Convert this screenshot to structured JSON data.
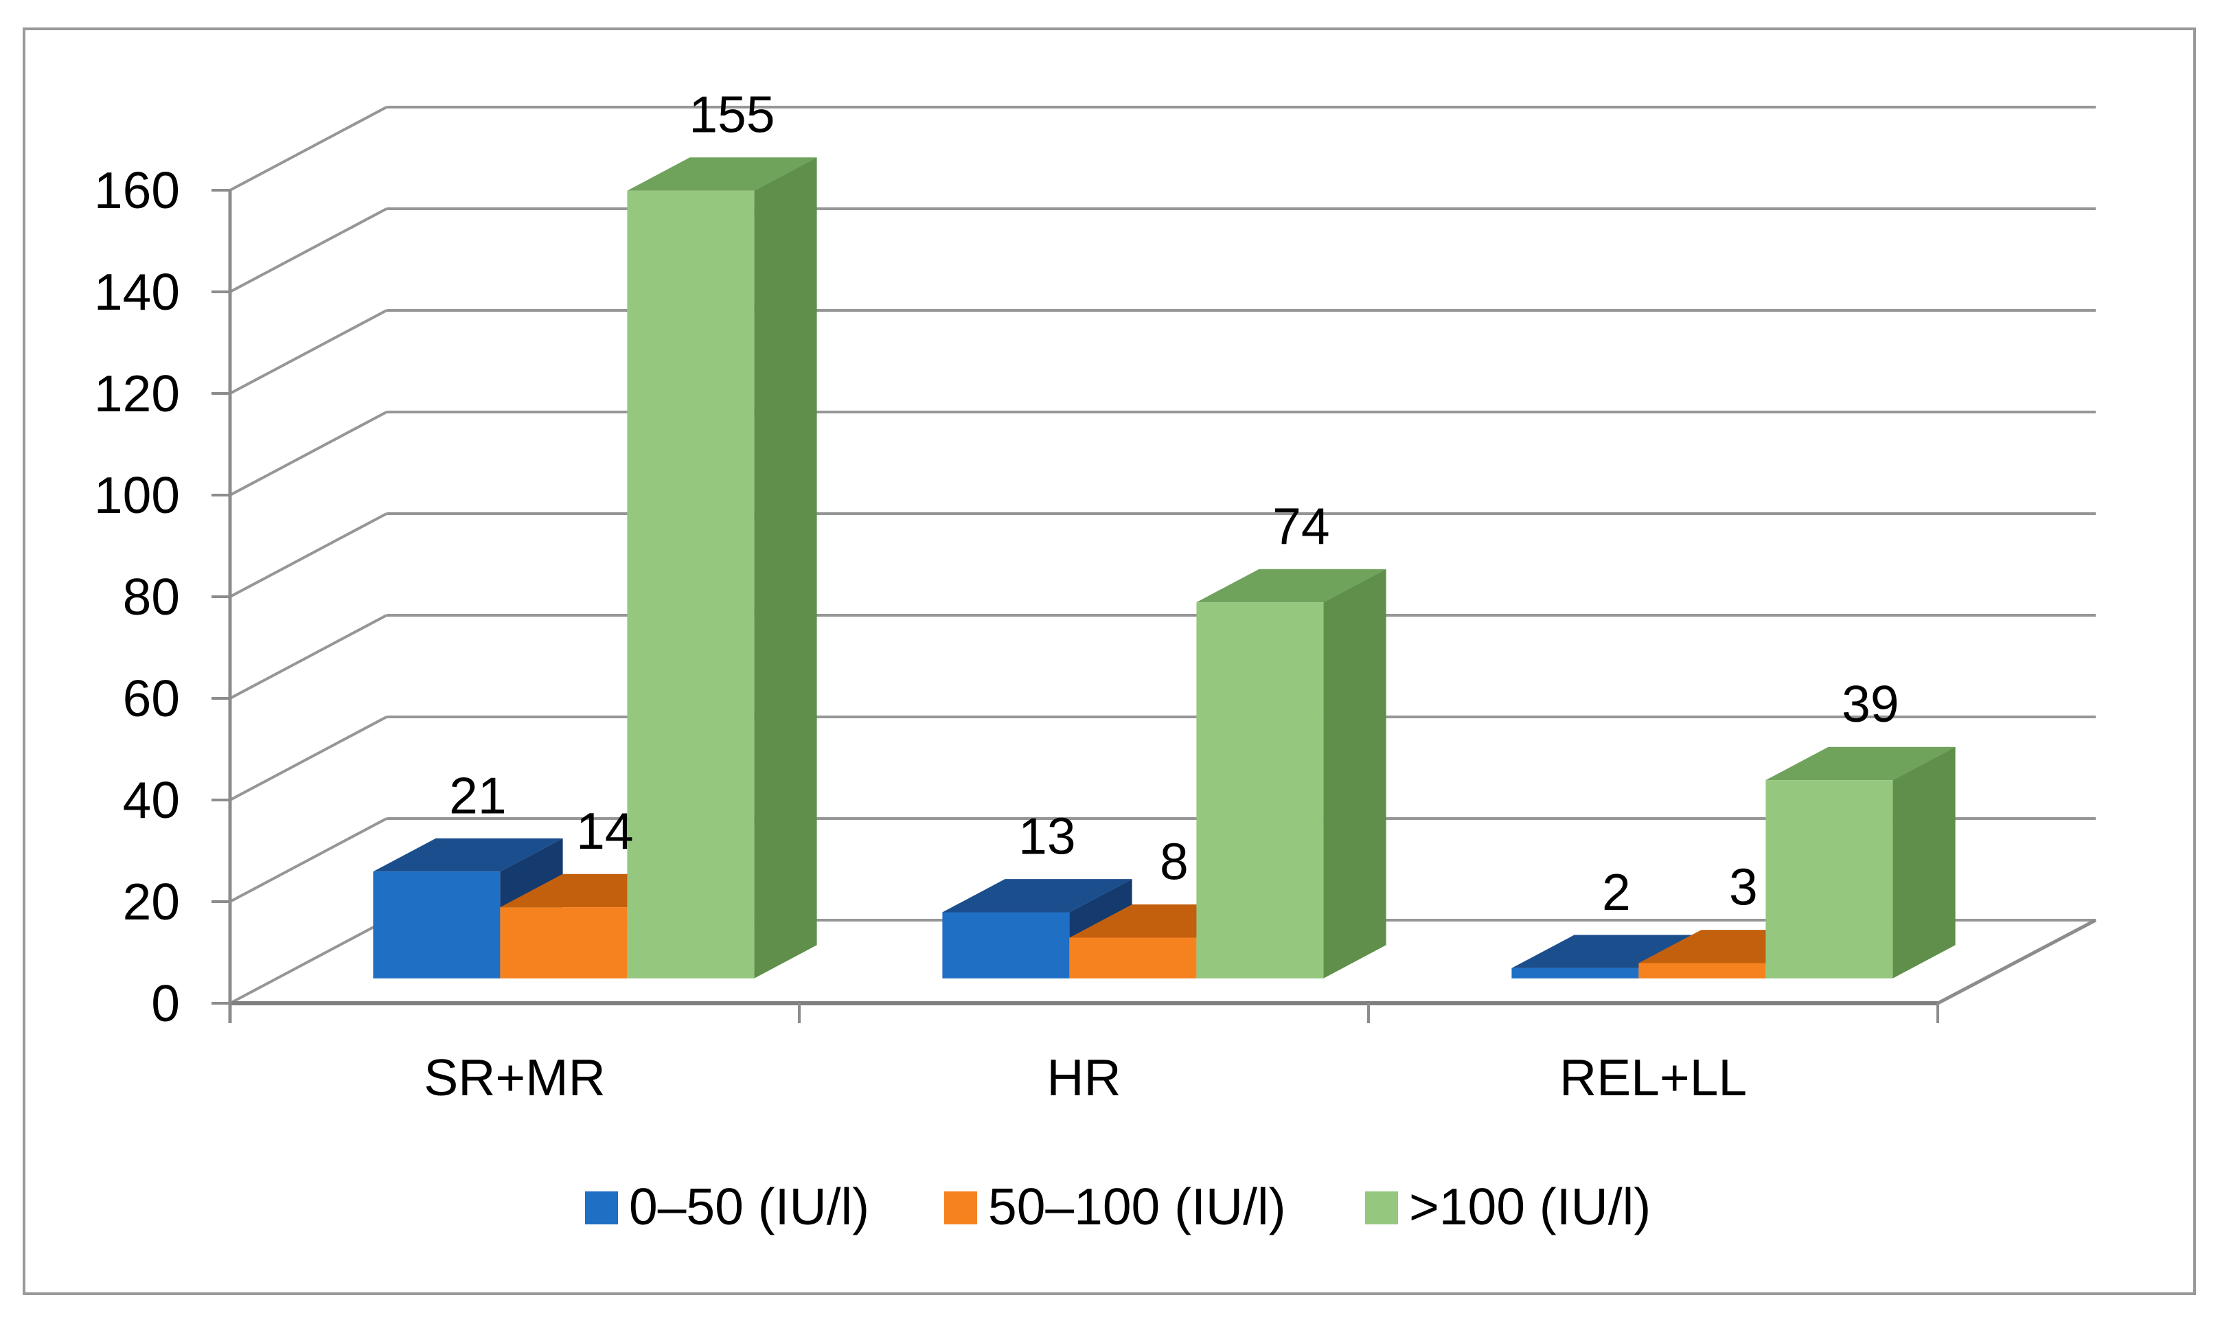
{
  "chart_data": {
    "type": "bar",
    "subtype": "3d-clustered-column",
    "title": "",
    "xlabel": "",
    "ylabel": "",
    "categories": [
      "SR+MR",
      "HR",
      "REL+LL"
    ],
    "series": [
      {
        "name": "0–50 (IU/l)",
        "values": [
          21,
          13,
          2
        ],
        "colors": {
          "front": "#1F6FC5",
          "top": "#1B4E8D",
          "side": "#143A6E"
        }
      },
      {
        "name": "50–100 (IU/l)",
        "values": [
          14,
          8,
          3
        ],
        "colors": {
          "front": "#F6821F",
          "top": "#C3600E",
          "side": "#A6510A"
        }
      },
      {
        "name": ">100 (IU/l)",
        "values": [
          155,
          74,
          39
        ],
        "colors": {
          "front": "#96C77F",
          "top": "#6FA25B",
          "side": "#5F8F4A"
        }
      }
    ],
    "data_labels": [
      [
        "21",
        "14",
        "155"
      ],
      [
        "13",
        "8",
        "74"
      ],
      [
        "2",
        "3",
        "39"
      ]
    ],
    "show_data_labels": true,
    "ylim": [
      0,
      160
    ],
    "ytick_interval": 20,
    "ytick_labels": [
      "0",
      "20",
      "40",
      "60",
      "80",
      "100",
      "120",
      "140",
      "160"
    ],
    "grid": true,
    "legend_position": "bottom",
    "style_colors": {
      "gridline": "#969696",
      "axis": "#8C8C8C",
      "floor_front_edge": "#7F7F7F",
      "figure_border": "#999999",
      "text": "#000000",
      "background": "#FFFFFF"
    }
  }
}
